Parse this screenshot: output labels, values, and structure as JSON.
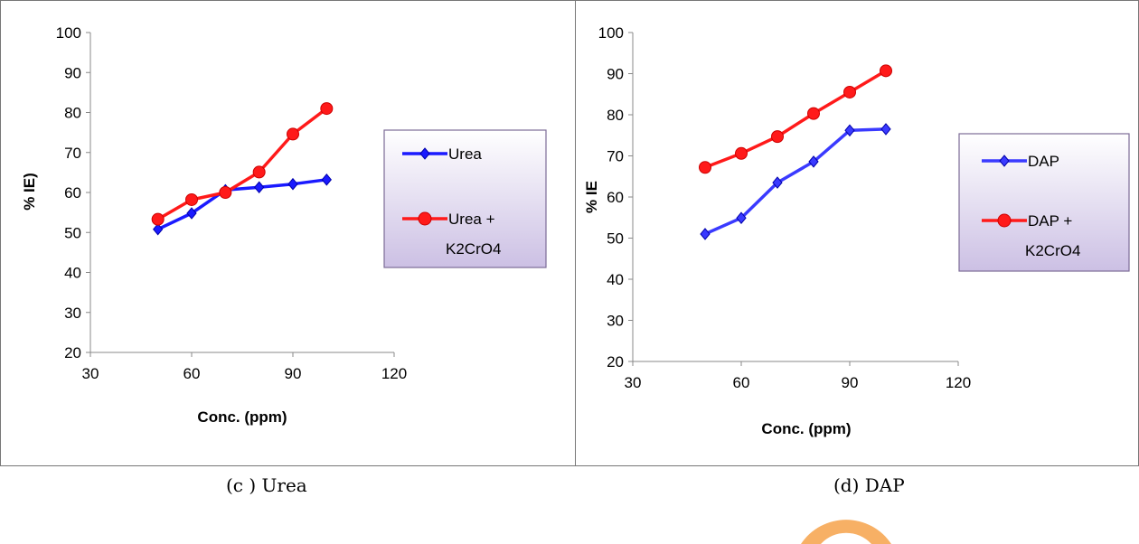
{
  "chart_data": [
    {
      "type": "line",
      "caption": "(c ) Urea",
      "xlabel": "Conc. (ppm)",
      "ylabel": "% IE)",
      "xlim": [
        30,
        120
      ],
      "ylim": [
        20,
        100
      ],
      "xticks": [
        30,
        60,
        90,
        120
      ],
      "yticks": [
        20,
        30,
        40,
        50,
        60,
        70,
        80,
        90,
        100
      ],
      "legend_position": "right",
      "series": [
        {
          "name": "Urea",
          "color": "#1a1aff",
          "marker": "diamond",
          "x": [
            50,
            60,
            70,
            80,
            90,
            100
          ],
          "y": [
            50.8,
            54.8,
            60.6,
            61.3,
            62.1,
            63.2
          ]
        },
        {
          "name": "Urea + K2CrO4",
          "color": "#ff1a1a",
          "marker": "circle",
          "x": [
            50,
            60,
            70,
            80,
            90,
            100
          ],
          "y": [
            53.3,
            58.2,
            60.0,
            65.1,
            74.6,
            81.0
          ]
        }
      ]
    },
    {
      "type": "line",
      "caption": "(d) DAP",
      "xlabel": "Conc. (ppm)",
      "ylabel": "% IE",
      "xlim": [
        30,
        120
      ],
      "ylim": [
        20,
        100
      ],
      "xticks": [
        30,
        60,
        90,
        120
      ],
      "yticks": [
        20,
        30,
        40,
        50,
        60,
        70,
        80,
        90,
        100
      ],
      "legend_position": "right",
      "series": [
        {
          "name": "DAP",
          "color": "#3a3aff",
          "marker": "diamond",
          "x": [
            50,
            60,
            70,
            80,
            90,
            100
          ],
          "y": [
            51.0,
            54.9,
            63.5,
            68.6,
            76.2,
            76.5
          ]
        },
        {
          "name": "DAP + K2CrO4",
          "color": "#ff1a1a",
          "marker": "circle",
          "x": [
            50,
            60,
            70,
            80,
            90,
            100
          ],
          "y": [
            67.2,
            70.6,
            74.7,
            80.3,
            85.5,
            90.7
          ]
        }
      ]
    }
  ]
}
